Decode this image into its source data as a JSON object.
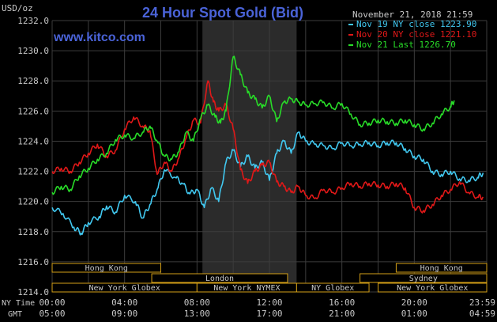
{
  "title": "24 Hour Spot Gold (Bid)",
  "source": "www.kitco.com",
  "date_label": "November 21, 2018 21:59",
  "y_unit": "USD/oz",
  "row_labels": {
    "ny_time": "NY Time",
    "gmt": "GMT"
  },
  "colors": {
    "background": "#000000",
    "grid": "#3c3c3c",
    "shade": "#2b2b2b",
    "title": "#4a63d8",
    "text": "#c8c8c8",
    "session_box": "#d4a017",
    "blue": "#41c8f0",
    "red": "#e01818",
    "green": "#28dc28"
  },
  "legend": [
    {
      "label": "Nov 19 NY close 1223.90",
      "color": "#41c8f0"
    },
    {
      "label": "Nov 20 NY close 1221.10",
      "color": "#e01818"
    },
    {
      "label": "Nov 21 Last 1226.70",
      "color": "#28dc28"
    }
  ],
  "sessions": [
    {
      "label": "Hong Kong",
      "start": 0,
      "end": 6
    },
    {
      "label": "London",
      "start": 5.5,
      "end": 13
    },
    {
      "label": "New York Globex",
      "start": 0,
      "end": 8
    },
    {
      "label": "New York NYMEX",
      "start": 8,
      "end": 13.5
    },
    {
      "label": "NY Globex",
      "start": 13.5,
      "end": 17.5
    },
    {
      "label": "Hong Kong",
      "start": 19,
      "end": 24
    },
    {
      "label": "Sydney",
      "start": 17,
      "end": 24
    },
    {
      "label": "New York Globex",
      "start": 18,
      "end": 24
    }
  ],
  "chart_data": {
    "type": "line",
    "title": "24 Hour Spot Gold (Bid)",
    "ylabel": "USD/oz",
    "ylim": [
      1214,
      1232
    ],
    "xlim": [
      0,
      24
    ],
    "yticks": [
      "1214.0",
      "1216.0",
      "1218.0",
      "1220.0",
      "1222.0",
      "1224.0",
      "1226.0",
      "1228.0",
      "1230.0",
      "1232.0"
    ],
    "xticks_ny": [
      "00:00",
      "04:00",
      "08:00",
      "12:00",
      "16:00",
      "20:00",
      "23:59"
    ],
    "xticks_gmt": [
      "05:00",
      "09:00",
      "13:00",
      "17:00",
      "21:00",
      "01:00",
      "04:59"
    ],
    "shaded_range": [
      8.3,
      13.5
    ],
    "grid": true,
    "legend_position": "top-right",
    "series": [
      {
        "name": "Nov 19 NY close 1223.90",
        "color": "#41c8f0",
        "x": [
          0,
          0.6,
          1.2,
          1.6,
          2.0,
          2.6,
          3.0,
          3.5,
          4.0,
          4.6,
          5.0,
          5.4,
          5.8,
          6.2,
          6.8,
          7.2,
          7.6,
          8.0,
          8.4,
          8.8,
          9.2,
          9.6,
          10.0,
          10.4,
          10.8,
          11.2,
          11.6,
          12.0,
          12.4,
          12.8,
          13.2,
          13.6,
          14.0,
          14.5,
          15.0,
          15.5,
          16.0,
          16.5,
          17.0,
          17.5,
          18.0,
          18.5,
          19.0,
          19.5,
          20.0,
          20.5,
          21.0,
          21.5,
          22.0,
          22.5,
          23.0,
          23.5,
          23.8
        ],
        "values": [
          1219.6,
          1219.2,
          1218.3,
          1217.9,
          1218.6,
          1219.0,
          1219.7,
          1219.3,
          1220.4,
          1220.0,
          1218.9,
          1219.8,
          1220.8,
          1222.1,
          1221.6,
          1221.2,
          1220.5,
          1220.8,
          1219.6,
          1220.9,
          1220.0,
          1222.6,
          1223.4,
          1222.3,
          1223.0,
          1222.2,
          1222.6,
          1221.4,
          1223.2,
          1224.0,
          1223.2,
          1224.6,
          1224.0,
          1223.8,
          1223.7,
          1223.5,
          1223.9,
          1223.7,
          1223.8,
          1223.9,
          1223.7,
          1223.9,
          1223.9,
          1223.5,
          1223.0,
          1222.8,
          1222.0,
          1221.8,
          1222.0,
          1221.5,
          1221.4,
          1221.6,
          1221.9
        ]
      },
      {
        "name": "Nov 20 NY close 1221.10",
        "color": "#e01818",
        "x": [
          0,
          0.5,
          1.0,
          1.5,
          2.0,
          2.5,
          3.0,
          3.5,
          4.0,
          4.5,
          5.0,
          5.4,
          5.8,
          6.2,
          6.6,
          7.0,
          7.4,
          7.8,
          8.2,
          8.6,
          8.9,
          9.2,
          9.6,
          10.0,
          10.4,
          10.8,
          11.2,
          11.6,
          12.0,
          12.4,
          12.8,
          13.2,
          13.6,
          14.0,
          14.5,
          15.0,
          15.5,
          16.0,
          16.5,
          17.0,
          17.5,
          18.0,
          18.5,
          19.0,
          19.5,
          20.0,
          20.5,
          21.0,
          21.5,
          22.0,
          22.5,
          23.0,
          23.5,
          23.8
        ],
        "values": [
          1222.0,
          1222.2,
          1222.0,
          1222.6,
          1223.2,
          1223.8,
          1223.0,
          1223.4,
          1224.8,
          1225.6,
          1225.0,
          1224.7,
          1221.8,
          1222.6,
          1222.0,
          1222.9,
          1224.2,
          1225.4,
          1225.2,
          1228.0,
          1226.6,
          1226.0,
          1226.4,
          1224.8,
          1222.1,
          1221.2,
          1222.0,
          1222.4,
          1222.6,
          1221.3,
          1221.0,
          1220.6,
          1221.0,
          1220.4,
          1220.2,
          1220.8,
          1220.6,
          1220.9,
          1221.2,
          1221.0,
          1221.2,
          1221.1,
          1221.0,
          1221.2,
          1220.9,
          1219.6,
          1219.4,
          1219.8,
          1220.4,
          1220.8,
          1221.3,
          1220.6,
          1220.3,
          1220.3
        ]
      },
      {
        "name": "Nov 21 Last 1226.70",
        "color": "#28dc28",
        "x": [
          0,
          0.5,
          1.0,
          1.5,
          2.0,
          2.5,
          3.0,
          3.5,
          4.0,
          4.5,
          5.0,
          5.4,
          5.8,
          6.2,
          6.6,
          7.0,
          7.4,
          7.8,
          8.2,
          8.6,
          9.0,
          9.3,
          9.6,
          10.0,
          10.4,
          10.8,
          11.2,
          11.6,
          12.0,
          12.4,
          12.8,
          13.2,
          13.6,
          14.0,
          14.5,
          15.0,
          15.5,
          16.0,
          16.5,
          17.0,
          17.5,
          18.0,
          18.5,
          19.0,
          19.5,
          20.0,
          20.5,
          21.0,
          21.5,
          22.0,
          22.2
        ],
        "values": [
          1220.6,
          1221.0,
          1220.8,
          1221.7,
          1222.2,
          1222.8,
          1223.2,
          1224.1,
          1224.4,
          1224.2,
          1224.6,
          1225.0,
          1224.0,
          1223.0,
          1222.8,
          1223.3,
          1224.6,
          1224.0,
          1225.5,
          1226.4,
          1225.6,
          1225.2,
          1226.0,
          1229.6,
          1228.4,
          1227.2,
          1226.8,
          1226.2,
          1227.0,
          1225.3,
          1226.6,
          1226.8,
          1226.6,
          1226.4,
          1226.5,
          1226.6,
          1226.2,
          1226.5,
          1225.8,
          1225.1,
          1225.2,
          1225.4,
          1225.3,
          1225.2,
          1225.4,
          1225.1,
          1224.8,
          1225.2,
          1225.8,
          1226.3,
          1226.7
        ]
      }
    ]
  }
}
